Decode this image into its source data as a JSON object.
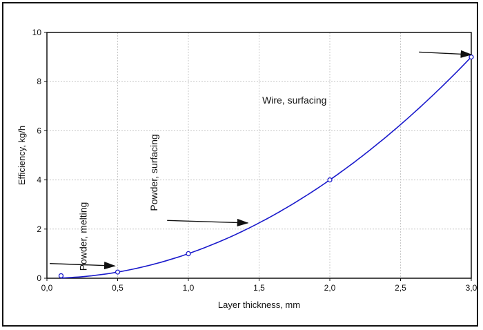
{
  "chart_data": {
    "type": "line",
    "title": "",
    "xlabel": "Layer thickness, mm",
    "ylabel": "Efficiency, kg/h",
    "xlim": [
      0,
      3
    ],
    "ylim": [
      0,
      10
    ],
    "x_ticks": [
      "0,0",
      "0,5",
      "1,0",
      "1,5",
      "2,0",
      "2,5",
      "3,0"
    ],
    "y_ticks": [
      "0",
      "2",
      "4",
      "6",
      "8",
      "10"
    ],
    "grid": true,
    "legend": "none",
    "curve_color": "#1a1acc",
    "series": [
      {
        "x": [
          0.1,
          0.5,
          1.0,
          2.0,
          3.0
        ],
        "y": [
          0.1,
          0.25,
          1.0,
          4.0,
          9.0
        ]
      }
    ],
    "annotations": [
      {
        "text": "Powder, melting",
        "x": 0.28,
        "y": 1.7,
        "rotation": -90
      },
      {
        "text": "Powder, surfacing",
        "x": 0.78,
        "y": 4.3,
        "rotation": -90
      },
      {
        "text": "Wire, surfacing",
        "x": 1.75,
        "y": 7.1,
        "rotation": 0
      }
    ],
    "arrows": [
      {
        "from": [
          0.02,
          0.6
        ],
        "to": [
          0.48,
          0.5
        ]
      },
      {
        "from": [
          0.85,
          2.35
        ],
        "to": [
          1.42,
          2.25
        ]
      },
      {
        "from": [
          2.63,
          9.2
        ],
        "to": [
          3.0,
          9.1
        ]
      }
    ]
  }
}
